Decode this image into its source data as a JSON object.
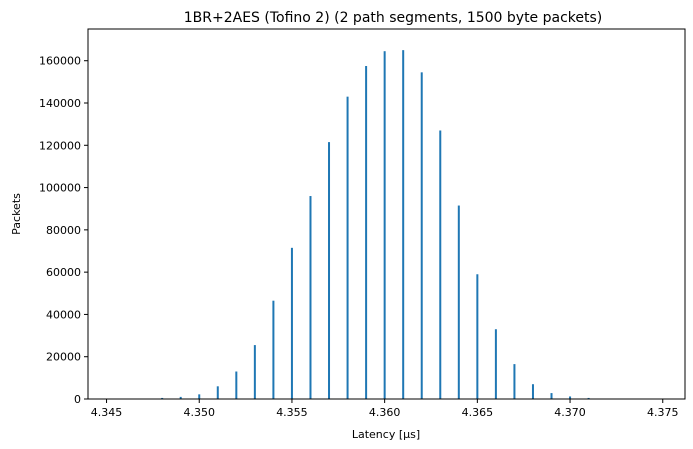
{
  "chart_data": {
    "type": "bar",
    "title": "1BR+2AES (Tofino 2) (2 path segments, 1500 byte packets)",
    "xlabel": "Latency [µs]",
    "ylabel": "Packets",
    "xlim": [
      4.344,
      4.3762
    ],
    "ylim": [
      0,
      175000
    ],
    "x_ticks": [
      4.345,
      4.35,
      4.355,
      4.36,
      4.365,
      4.37,
      4.375
    ],
    "y_ticks": [
      0,
      20000,
      40000,
      60000,
      80000,
      100000,
      120000,
      140000,
      160000
    ],
    "x_tick_labels": [
      "4.345",
      "4.350",
      "4.355",
      "4.360",
      "4.365",
      "4.370",
      "4.375"
    ],
    "y_tick_labels": [
      "0",
      "20000",
      "40000",
      "60000",
      "80000",
      "100000",
      "120000",
      "140000",
      "160000"
    ],
    "grid": false,
    "bar_color": "#1f77b4",
    "x": [
      4.347,
      4.348,
      4.349,
      4.35,
      4.351,
      4.352,
      4.353,
      4.354,
      4.355,
      4.356,
      4.357,
      4.358,
      4.359,
      4.36,
      4.361,
      4.362,
      4.363,
      4.364,
      4.365,
      4.366,
      4.367,
      4.368,
      4.369,
      4.37,
      4.371,
      4.372
    ],
    "values": [
      200,
      500,
      1000,
      2200,
      6000,
      13000,
      25500,
      46500,
      71500,
      96000,
      121500,
      143000,
      157500,
      164500,
      165000,
      154500,
      127000,
      91500,
      59000,
      33000,
      16500,
      7000,
      2800,
      1200,
      500,
      200
    ]
  }
}
